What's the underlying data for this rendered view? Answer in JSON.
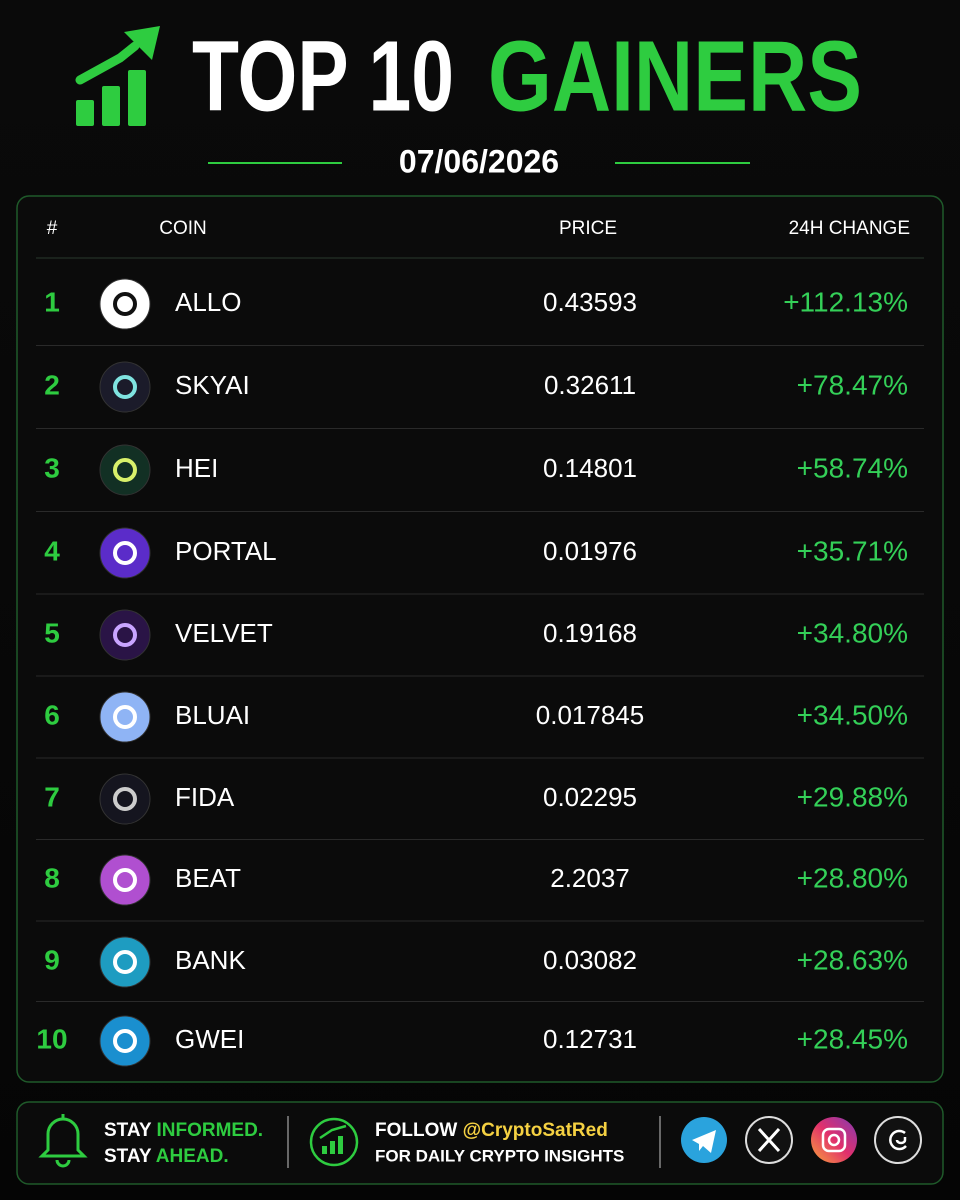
{
  "header": {
    "title_white": "TOP 10",
    "title_green": "GAINERS",
    "date": "07/06/2026"
  },
  "table": {
    "columns": [
      "#",
      "COIN",
      "PRICE",
      "24H CHANGE"
    ],
    "rows": [
      [
        "1",
        "ALLO",
        "0.43593",
        "+112.13%"
      ],
      [
        "2",
        "SKYAI",
        "0.32611",
        "+78.47%"
      ],
      [
        "3",
        "HEI",
        "0.14801",
        "+58.74%"
      ],
      [
        "4",
        "PORTAL",
        "0.01976",
        "+35.71%"
      ],
      [
        "5",
        "VELVET",
        "0.19168",
        "+34.80%"
      ],
      [
        "6",
        "BLUAI",
        "0.017845",
        "+34.50%"
      ],
      [
        "7",
        "FIDA",
        "0.02295",
        "+29.88%"
      ],
      [
        "8",
        "BEAT",
        "2.2037",
        "+28.80%"
      ],
      [
        "9",
        "BANK",
        "0.03082",
        "+28.63%"
      ],
      [
        "10",
        "GWEI",
        "0.12731",
        "+28.45%"
      ]
    ]
  },
  "footer": {
    "line1": [
      "STAY",
      "INFORMED."
    ],
    "line2": [
      "STAY",
      "AHEAD."
    ],
    "follow": [
      "FOLLOW",
      "@CryptoSatRed"
    ],
    "insights": "FOR DAILY CRYPTO INSIGHTS"
  }
}
